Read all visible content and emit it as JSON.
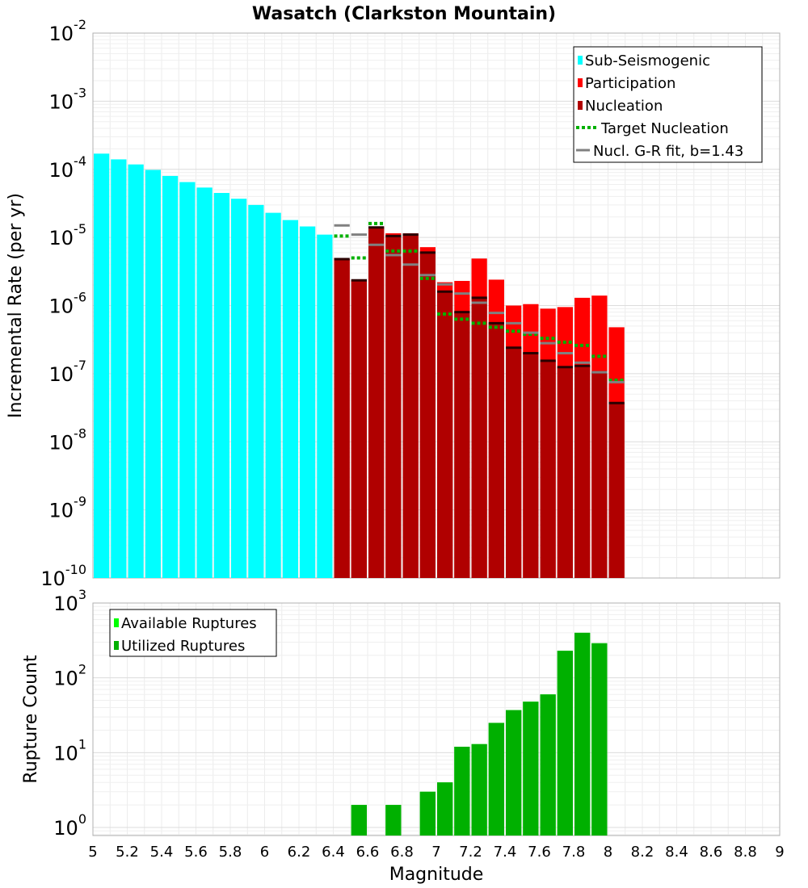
{
  "title": "Wasatch (Clarkston Mountain)",
  "chart_data": [
    {
      "type": "bar",
      "title": "Wasatch (Clarkston Mountain)",
      "xlabel": "Magnitude",
      "ylabel": "Incremental Rate (per yr)",
      "yscale": "log",
      "xlim": [
        5,
        9
      ],
      "ylim": [
        1e-10,
        0.01
      ],
      "grid": true,
      "legend_position": "top-right",
      "bin_width": 0.1,
      "y_tick_labels": [
        {
          "base": "10",
          "exp": "-10",
          "value": 1e-10
        },
        {
          "base": "10",
          "exp": "-9",
          "value": 1e-09
        },
        {
          "base": "10",
          "exp": "-8",
          "value": 1e-08
        },
        {
          "base": "10",
          "exp": "-7",
          "value": 1e-07
        },
        {
          "base": "10",
          "exp": "-6",
          "value": 1e-06
        },
        {
          "base": "10",
          "exp": "-5",
          "value": 1e-05
        },
        {
          "base": "10",
          "exp": "-4",
          "value": 0.0001
        },
        {
          "base": "10",
          "exp": "-3",
          "value": 0.001
        },
        {
          "base": "10",
          "exp": "-2",
          "value": 0.01
        }
      ],
      "legend": [
        {
          "label": "Sub-Seismogenic",
          "kind": "bar",
          "color": "#00ffff"
        },
        {
          "label": "Participation",
          "kind": "bar",
          "color": "#ff0000"
        },
        {
          "label": "Nucleation",
          "kind": "bar",
          "color": "#b00000"
        },
        {
          "label": "Target Nucleation",
          "kind": "dotted",
          "color": "#00b000"
        },
        {
          "label": "Nucl. G-R fit, b=1.43",
          "kind": "line",
          "color": "#808080"
        }
      ],
      "series": [
        {
          "name": "Sub-Seismogenic",
          "color": "#00ffff",
          "x": [
            5.05,
            5.15,
            5.25,
            5.35,
            5.45,
            5.55,
            5.65,
            5.75,
            5.85,
            5.95,
            6.05,
            6.15,
            6.25,
            6.35
          ],
          "values": [
            0.00017,
            0.00014,
            0.000118,
            9.8e-05,
            8e-05,
            6.5e-05,
            5.4e-05,
            4.5e-05,
            3.7e-05,
            3e-05,
            2.3e-05,
            1.8e-05,
            1.45e-05,
            1.1e-05
          ]
        },
        {
          "name": "Participation",
          "color": "#ff0000",
          "x": [
            6.45,
            6.55,
            6.65,
            6.75,
            6.85,
            6.95,
            7.05,
            7.15,
            7.25,
            7.35,
            7.45,
            7.55,
            7.65,
            7.75,
            7.85,
            7.95,
            8.05
          ],
          "values": [
            4.8e-06,
            2.4e-06,
            1.45e-05,
            1.15e-05,
            1.15e-05,
            7.2e-06,
            2.2e-06,
            2.3e-06,
            4.9e-06,
            2.4e-06,
            1e-06,
            1.05e-06,
            9e-07,
            9.5e-07,
            1.3e-06,
            1.4e-06,
            4.8e-07
          ]
        },
        {
          "name": "Nucleation",
          "color": "#b00000",
          "x": [
            6.45,
            6.55,
            6.65,
            6.75,
            6.85,
            6.95,
            7.05,
            7.15,
            7.25,
            7.35,
            7.45,
            7.55,
            7.65,
            7.75,
            7.85,
            7.95,
            8.05
          ],
          "values": [
            4.8e-06,
            2.35e-06,
            1.4e-05,
            1.05e-05,
            1.1e-05,
            6e-06,
            1.6e-06,
            8e-07,
            1.3e-06,
            5.5e-07,
            2.4e-07,
            2e-07,
            1.55e-07,
            1.25e-07,
            1.3e-07,
            1.05e-07,
            3.7e-08
          ]
        },
        {
          "name": "Target Nucleation",
          "color": "#00b000",
          "x": [
            6.45,
            6.55,
            6.65,
            6.75,
            6.85,
            6.95,
            7.05,
            7.15,
            7.25,
            7.35,
            7.45,
            7.55,
            7.65,
            7.75,
            7.85,
            7.95,
            8.05
          ],
          "values": [
            1.05e-05,
            5e-06,
            1.6e-05,
            6.3e-06,
            6.3e-06,
            2.5e-06,
            7.5e-07,
            6.3e-07,
            5.5e-07,
            4.8e-07,
            4.2e-07,
            3.8e-07,
            3.3e-07,
            2.9e-07,
            2.6e-07,
            1.8e-07,
            8e-08
          ]
        },
        {
          "name": "Nucl. G-R fit, b=1.43",
          "color": "#808080",
          "x": [
            6.45,
            6.55,
            6.65,
            6.75,
            6.85,
            6.95,
            7.05,
            7.15,
            7.25,
            7.35,
            7.45,
            7.55,
            7.65,
            7.75,
            7.85,
            7.95,
            8.05
          ],
          "values": [
            1.5e-05,
            1.1e-05,
            7.8e-06,
            5.5e-06,
            4e-06,
            2.8e-06,
            2.05e-06,
            1.5e-06,
            1.1e-06,
            7.8e-07,
            5.5e-07,
            4e-07,
            2.8e-07,
            2e-07,
            1.45e-07,
            1.05e-07,
            7.5e-08
          ]
        }
      ]
    },
    {
      "type": "bar",
      "title": "",
      "xlabel": "Magnitude",
      "ylabel": "Rupture Count",
      "yscale": "log",
      "xlim": [
        5,
        9
      ],
      "ylim": [
        0.78,
        1000
      ],
      "grid": true,
      "legend_position": "top-left",
      "bin_width": 0.1,
      "x_tick_labels": [
        "5",
        "5.2",
        "5.4",
        "5.6",
        "5.8",
        "6",
        "6.2",
        "6.4",
        "6.6",
        "6.8",
        "7",
        "7.2",
        "7.4",
        "7.6",
        "7.8",
        "8",
        "8.2",
        "8.4",
        "8.6",
        "8.8",
        "9"
      ],
      "x_tick_values": [
        5,
        5.2,
        5.4,
        5.6,
        5.8,
        6,
        6.2,
        6.4,
        6.6,
        6.8,
        7,
        7.2,
        7.4,
        7.6,
        7.8,
        8,
        8.2,
        8.4,
        8.6,
        8.8,
        9
      ],
      "y_tick_labels": [
        {
          "base": "10",
          "exp": "0",
          "value": 1
        },
        {
          "base": "10",
          "exp": "1",
          "value": 10
        },
        {
          "base": "10",
          "exp": "2",
          "value": 100
        },
        {
          "base": "10",
          "exp": "3",
          "value": 1000
        }
      ],
      "legend": [
        {
          "label": "Available Ruptures",
          "kind": "bar",
          "color": "#00ff00"
        },
        {
          "label": "Utilized Ruptures",
          "kind": "bar",
          "color": "#00b000"
        }
      ],
      "series": [
        {
          "name": "Available Ruptures",
          "color": "#00ff00",
          "x": [
            6.55,
            6.75,
            6.95,
            7.05,
            7.15,
            7.25,
            7.35,
            7.45,
            7.55,
            7.65,
            7.75,
            7.85,
            7.95
          ],
          "values": [
            2,
            2,
            3,
            4,
            12,
            13,
            25,
            37,
            48,
            60,
            230,
            400,
            290
          ]
        },
        {
          "name": "Utilized Ruptures",
          "color": "#00b000",
          "x": [
            6.55,
            6.75,
            6.95,
            7.05,
            7.15,
            7.25,
            7.35,
            7.45,
            7.55,
            7.65,
            7.75,
            7.85,
            7.95
          ],
          "values": [
            2,
            2,
            3,
            4,
            12,
            13,
            25,
            37,
            48,
            60,
            230,
            400,
            290
          ]
        }
      ]
    }
  ]
}
